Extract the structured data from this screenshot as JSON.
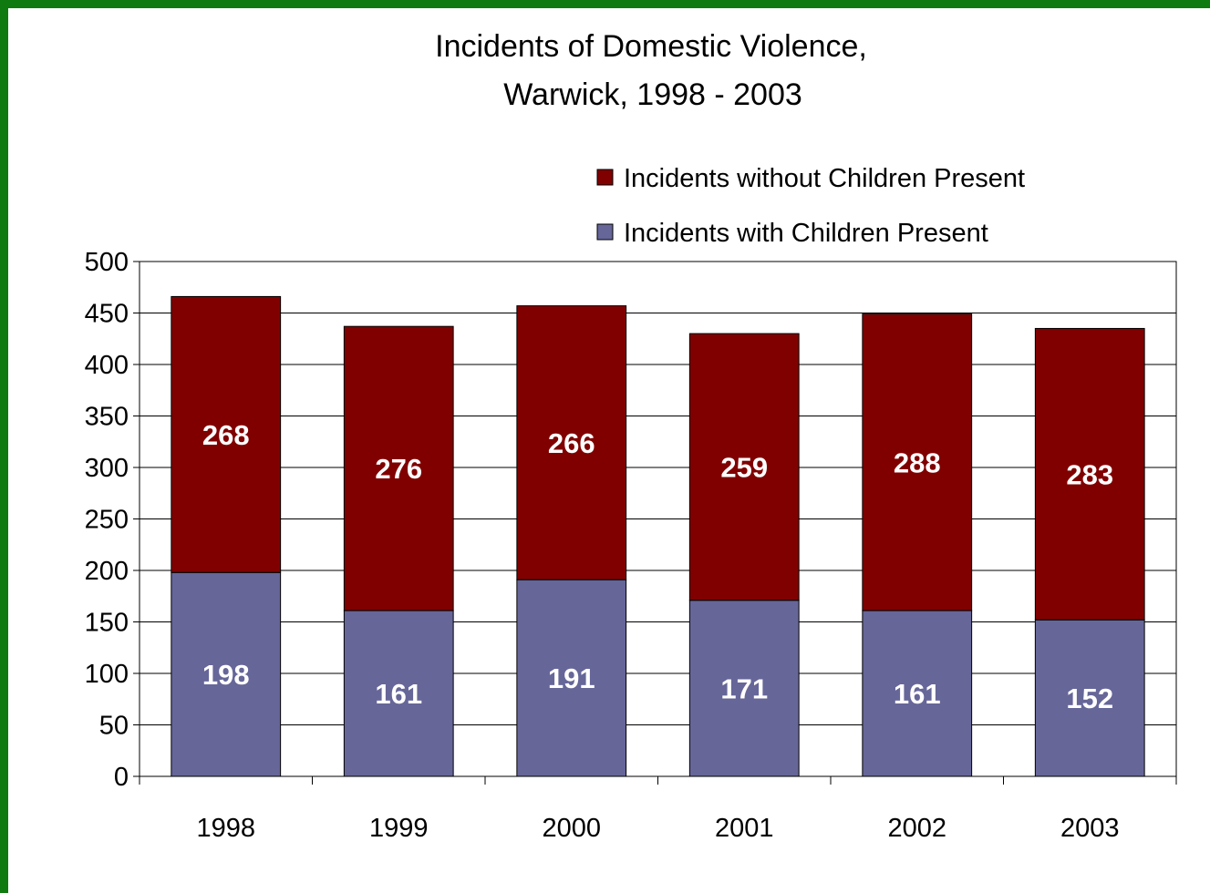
{
  "chart_data": {
    "type": "bar",
    "stacked": true,
    "title_lines": [
      "Incidents of Domestic Violence,",
      "Warwick, 1998 - 2003"
    ],
    "xlabel": "",
    "ylabel": "",
    "categories": [
      "1998",
      "1999",
      "2000",
      "2001",
      "2002",
      "2003"
    ],
    "series": [
      {
        "name": "Incidents with Children Present",
        "color": "#666699",
        "values": [
          198,
          161,
          191,
          171,
          161,
          152
        ]
      },
      {
        "name": "Incidents without Children Present",
        "color": "#800000",
        "values": [
          268,
          276,
          266,
          259,
          288,
          283
        ]
      }
    ],
    "ylim": [
      0,
      500
    ],
    "yticks": [
      0,
      50,
      100,
      150,
      200,
      250,
      300,
      350,
      400,
      450,
      500
    ],
    "grid": true,
    "legend_position": "top-right",
    "frame_color": "#0f7a0f"
  }
}
